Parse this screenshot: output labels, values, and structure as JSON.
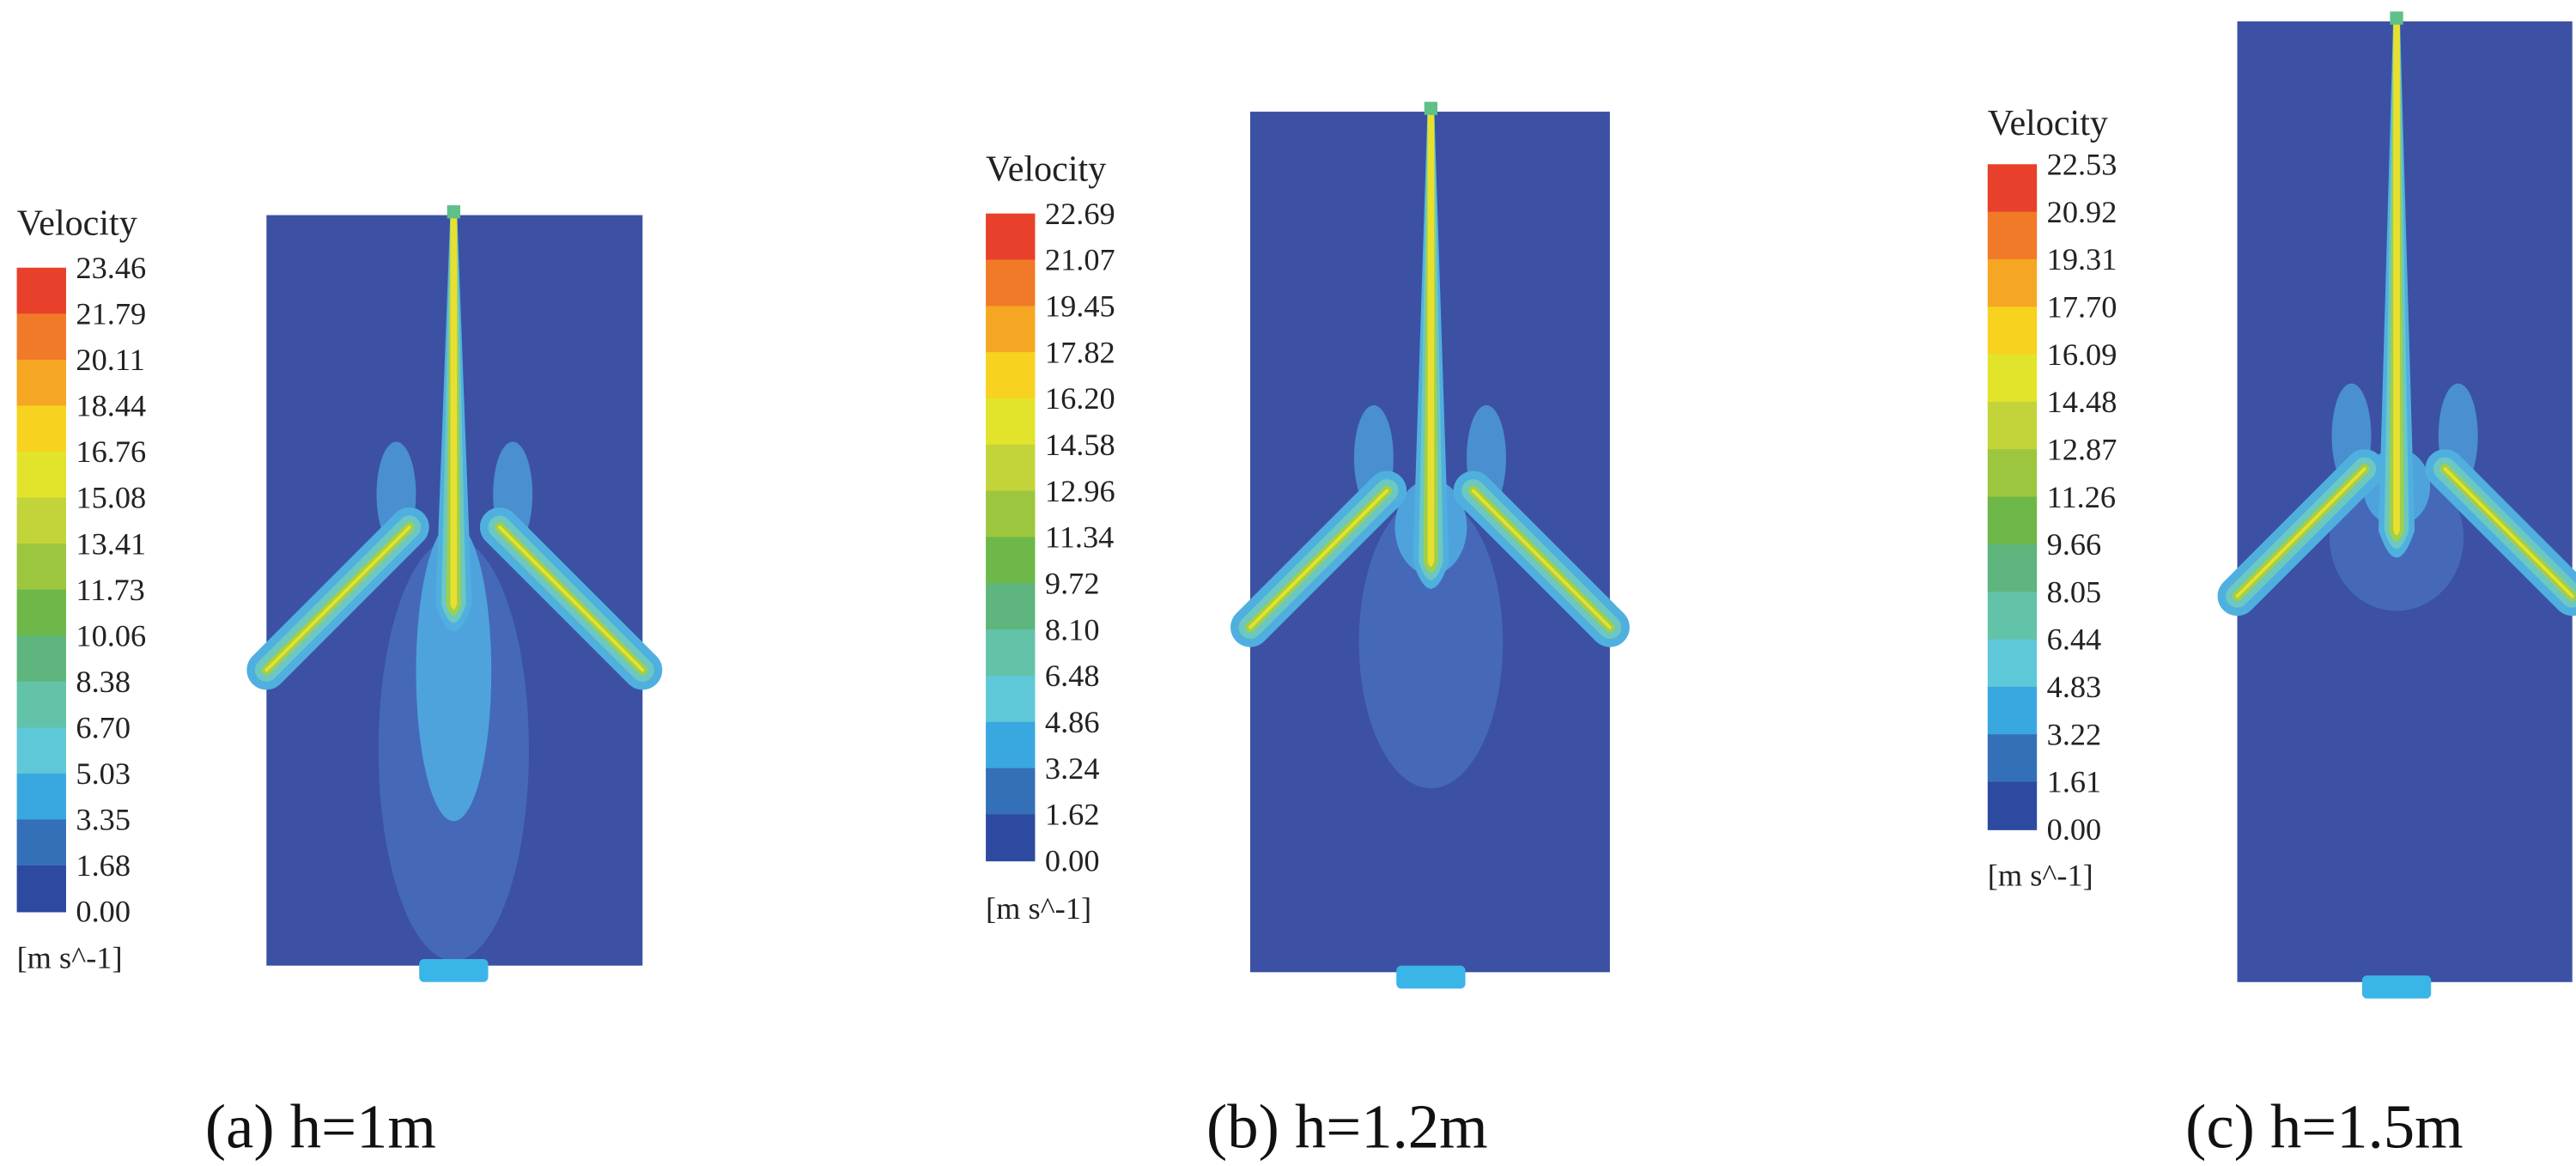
{
  "panels": [
    {
      "legend_title": "Velocity",
      "legend_ticks": [
        "23.46",
        "21.79",
        "20.11",
        "18.44",
        "16.76",
        "15.08",
        "13.41",
        "11.73",
        "10.06",
        "8.38",
        "6.70",
        "5.03",
        "3.35",
        "1.68",
        "0.00"
      ],
      "unit": "[m s^-1]",
      "caption": "(a) h=1m"
    },
    {
      "legend_title": "Velocity",
      "legend_ticks": [
        "22.69",
        "21.07",
        "19.45",
        "17.82",
        "16.20",
        "14.58",
        "12.96",
        "11.34",
        "9.72",
        "8.10",
        "6.48",
        "4.86",
        "3.24",
        "1.62",
        "0.00"
      ],
      "unit": "[m s^-1]",
      "caption": "(b) h=1.2m"
    },
    {
      "legend_title": "Velocity",
      "legend_ticks": [
        "22.53",
        "20.92",
        "19.31",
        "17.70",
        "16.09",
        "14.48",
        "12.87",
        "11.26",
        "9.66",
        "8.05",
        "6.44",
        "4.83",
        "3.22",
        "1.61",
        "0.00"
      ],
      "unit": "[m s^-1]",
      "caption": "(c) h=1.5m"
    }
  ]
}
